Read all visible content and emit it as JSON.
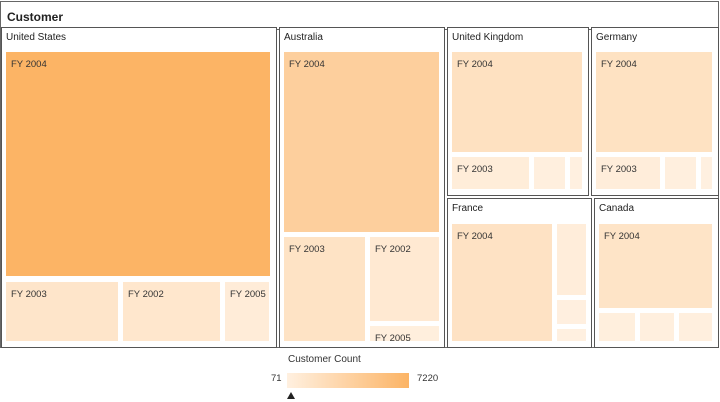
{
  "chart_data": {
    "type": "treemap",
    "title": "Customer",
    "color_scale": {
      "title": "Customer Count",
      "min": 71,
      "max": 7220,
      "min_color": "#fff0e0",
      "max_color": "#fcb465"
    },
    "groups": [
      {
        "name": "United States",
        "leaves": [
          {
            "label": "FY 2004",
            "value": 7220
          },
          {
            "label": "FY 2003",
            "value": 1350
          },
          {
            "label": "FY 2002",
            "value": 1150
          },
          {
            "label": "FY 2005",
            "value": 540
          }
        ]
      },
      {
        "name": "Australia",
        "leaves": [
          {
            "label": "FY 2004",
            "value": 3980
          },
          {
            "label": "FY 2003",
            "value": 1650
          },
          {
            "label": "FY 2002",
            "value": 900
          },
          {
            "label": "FY 2005",
            "value": 240
          }
        ]
      },
      {
        "name": "United Kingdom",
        "leaves": [
          {
            "label": "FY 2004",
            "value": 1880
          },
          {
            "label": "FY 2003",
            "value": 480
          },
          {
            "label": "",
            "value": 200
          },
          {
            "label": "",
            "value": 80
          }
        ]
      },
      {
        "name": "Germany",
        "leaves": [
          {
            "label": "FY 2004",
            "value": 1790
          },
          {
            "label": "FY 2003",
            "value": 430
          },
          {
            "label": "",
            "value": 180
          },
          {
            "label": "",
            "value": 71
          }
        ]
      },
      {
        "name": "France",
        "leaves": [
          {
            "label": "FY 2004",
            "value": 1720
          },
          {
            "label": "",
            "value": 420
          },
          {
            "label": "",
            "value": 150
          },
          {
            "label": "",
            "value": 90
          }
        ]
      },
      {
        "name": "Canada",
        "leaves": [
          {
            "label": "FY 2004",
            "value": 1510
          },
          {
            "label": "",
            "value": 230
          },
          {
            "label": "",
            "value": 210
          },
          {
            "label": "",
            "value": 200
          }
        ]
      }
    ]
  }
}
